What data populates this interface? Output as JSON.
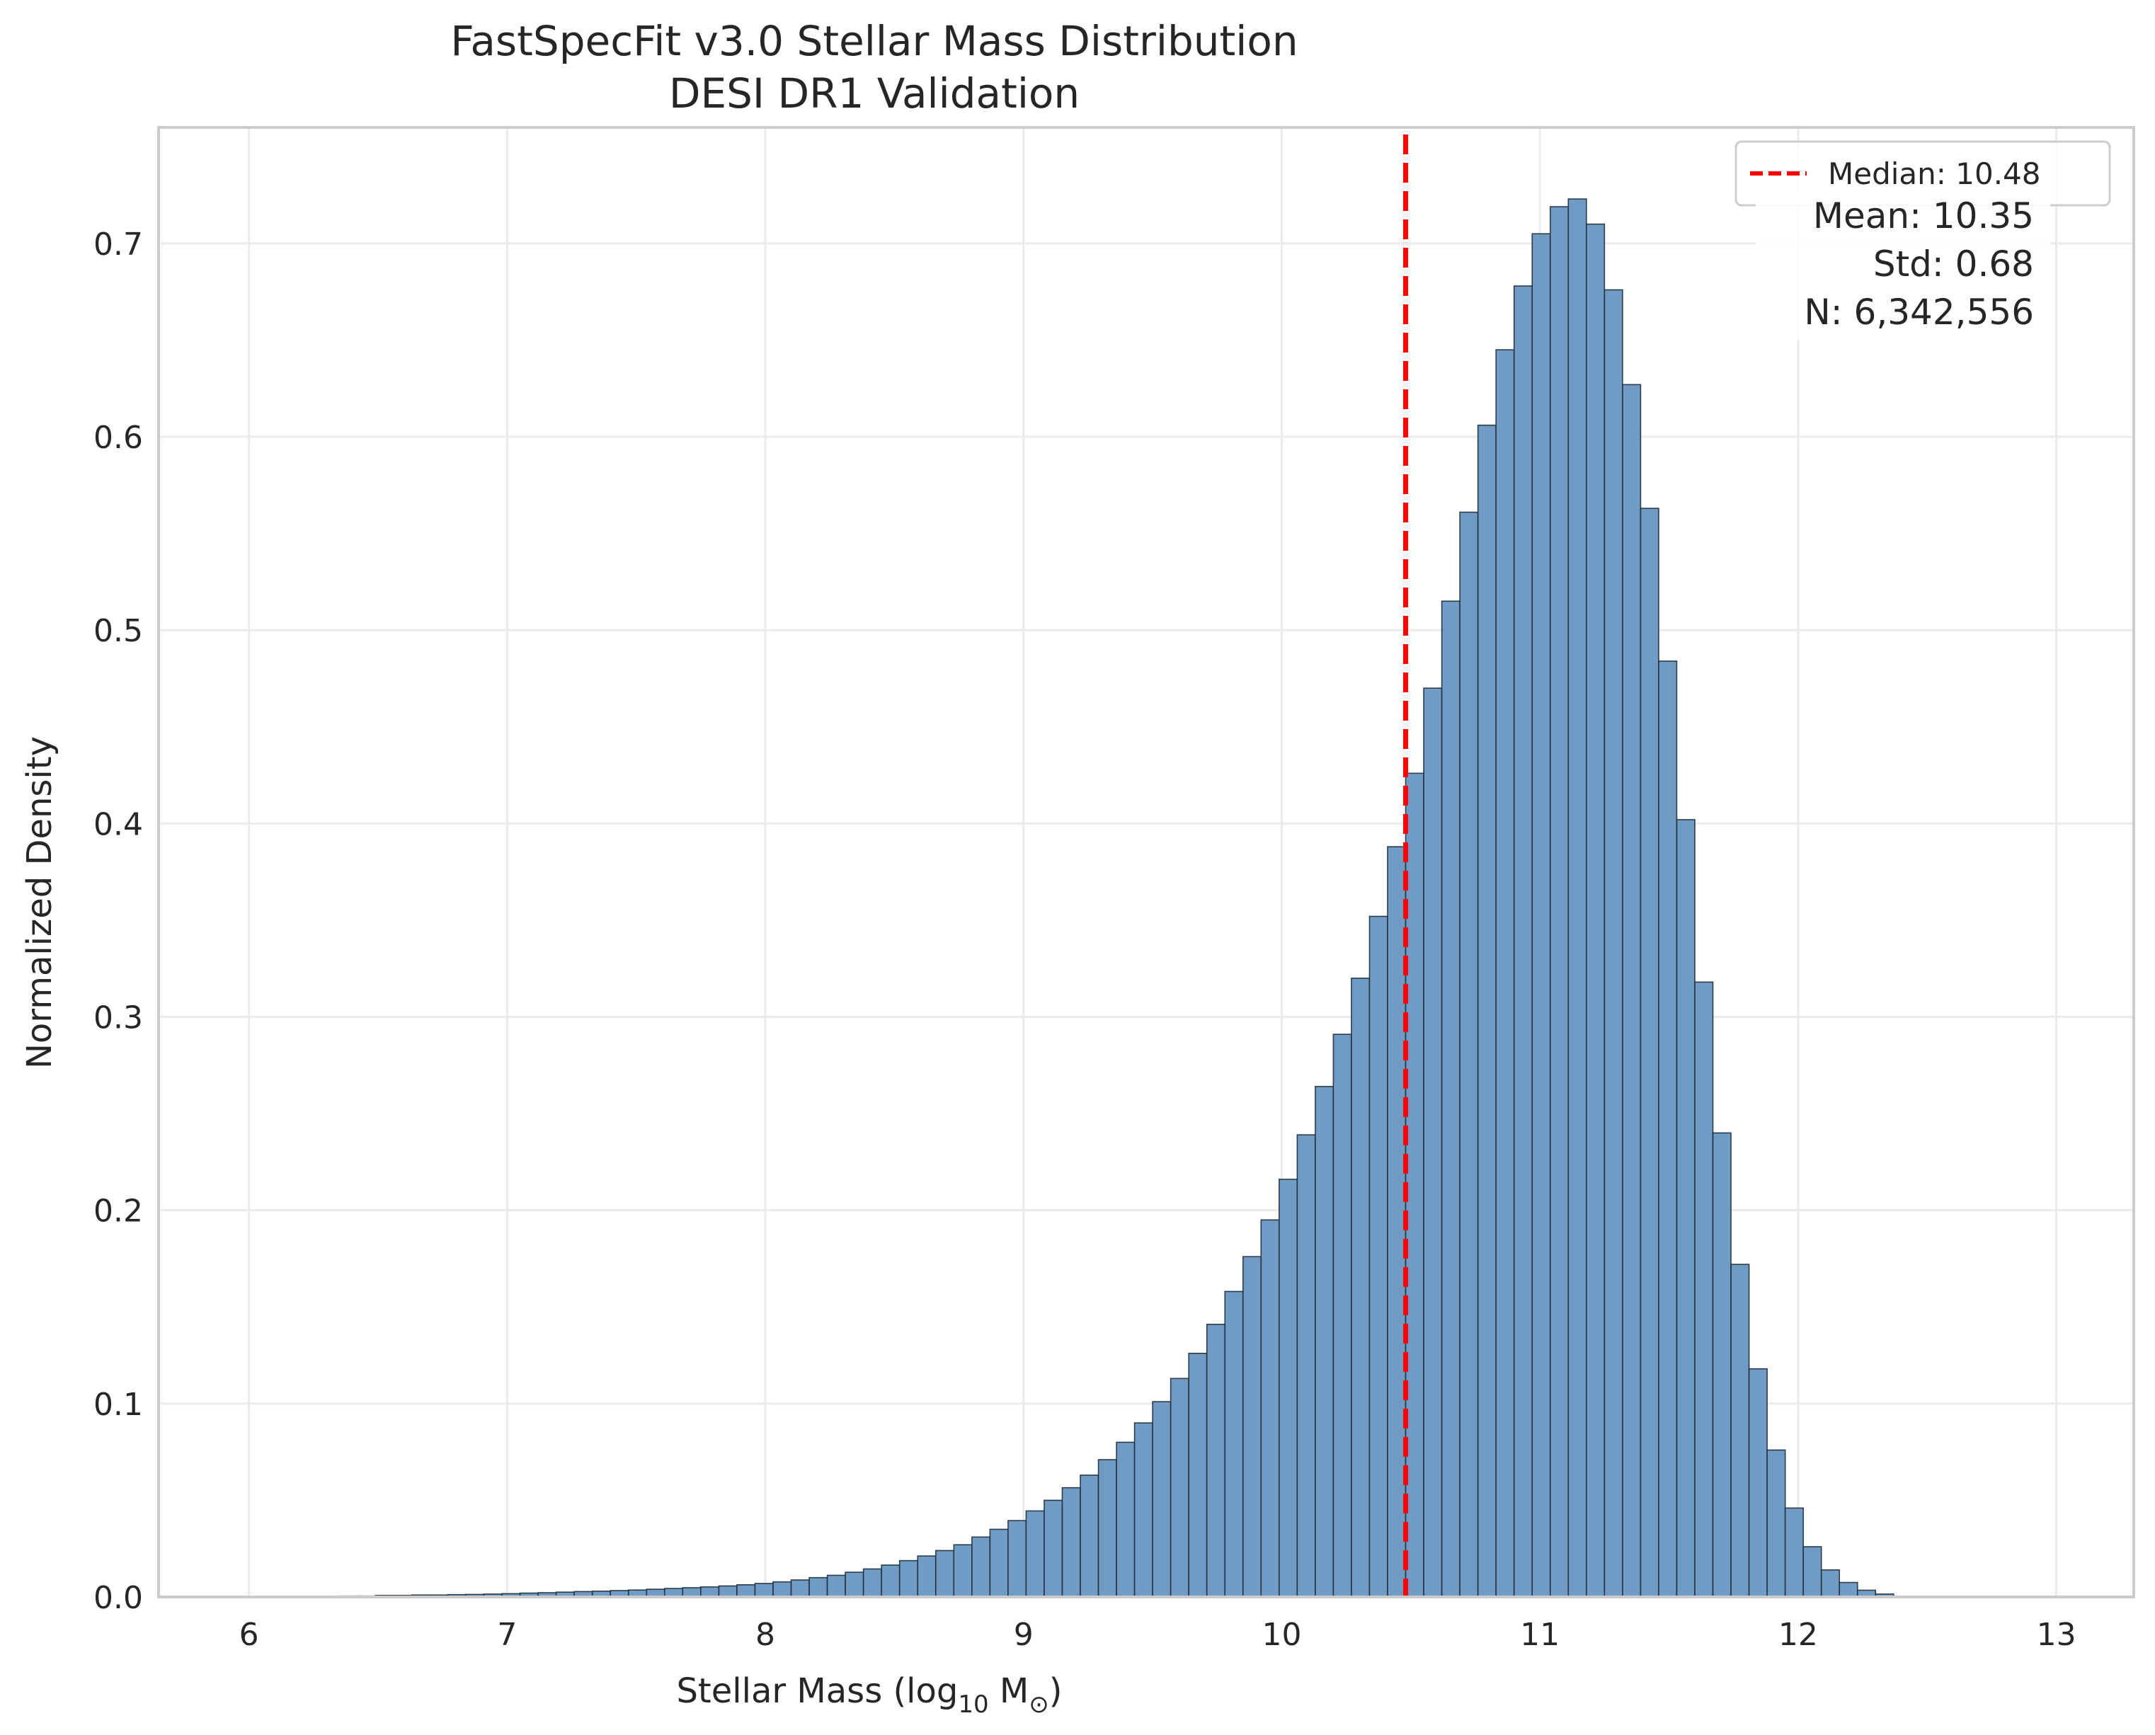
{
  "chart_data": {
    "type": "bar",
    "title": "FastSpecFit v3.0 Stellar Mass Distribution",
    "subtitle": "DESI DR1 Validation",
    "xlabel": "Stellar Mass (log",
    "xlabel_sub": "10",
    "xlabel_unit": " M",
    "xlabel_sun_sub": "⊙",
    "xlabel_end": ")",
    "ylabel": "Normalized Density",
    "xlim": [
      5.65,
      13.3
    ],
    "ylim": [
      0,
      0.76
    ],
    "xticks": [
      6,
      7,
      8,
      9,
      10,
      11,
      12,
      13
    ],
    "yticks": [
      0.0,
      0.1,
      0.2,
      0.3,
      0.4,
      0.5,
      0.6,
      0.7
    ],
    "ytick_labels": [
      "0.0",
      "0.1",
      "0.2",
      "0.3",
      "0.4",
      "0.5",
      "0.6",
      "0.7"
    ],
    "grid": true,
    "bin_start": 6.0,
    "bin_width": 0.07,
    "bar_color": "#6f9bc4",
    "bar_edge_color": "#1f2d3a",
    "values": [
      0,
      0,
      0,
      0,
      0,
      0.0005,
      0.0005,
      0.0008,
      0.0008,
      0.001,
      0.001,
      0.0012,
      0.0013,
      0.0015,
      0.0017,
      0.002,
      0.0022,
      0.0025,
      0.0028,
      0.003,
      0.0033,
      0.0036,
      0.004,
      0.0044,
      0.0048,
      0.0052,
      0.0057,
      0.0063,
      0.007,
      0.0078,
      0.0088,
      0.01,
      0.0112,
      0.0128,
      0.0145,
      0.0165,
      0.0188,
      0.0212,
      0.024,
      0.027,
      0.031,
      0.035,
      0.0395,
      0.0445,
      0.05,
      0.0565,
      0.063,
      0.071,
      0.08,
      0.09,
      0.101,
      0.113,
      0.126,
      0.141,
      0.158,
      0.176,
      0.195,
      0.216,
      0.239,
      0.264,
      0.291,
      0.32,
      0.352,
      0.388,
      0.426,
      0.47,
      0.515,
      0.561,
      0.606,
      0.645,
      0.678,
      0.705,
      0.719,
      0.723,
      0.71,
      0.676,
      0.627,
      0.563,
      0.484,
      0.402,
      0.318,
      0.24,
      0.172,
      0.118,
      0.076,
      0.046,
      0.026,
      0.014,
      0.0075,
      0.0035,
      0.0015,
      0,
      0,
      0,
      0,
      0,
      0,
      0,
      0,
      0
    ],
    "median": 10.48,
    "median_color": "#ff0000",
    "legend": {
      "position": "top-right",
      "entries": [
        {
          "label": "Median: 10.48",
          "style": "dashed",
          "color": "#ff0000"
        }
      ]
    },
    "stats_box": {
      "position": "top-right",
      "lines": [
        "Mean: 10.35",
        "Std: 0.68",
        "N: 6,342,556"
      ]
    }
  }
}
